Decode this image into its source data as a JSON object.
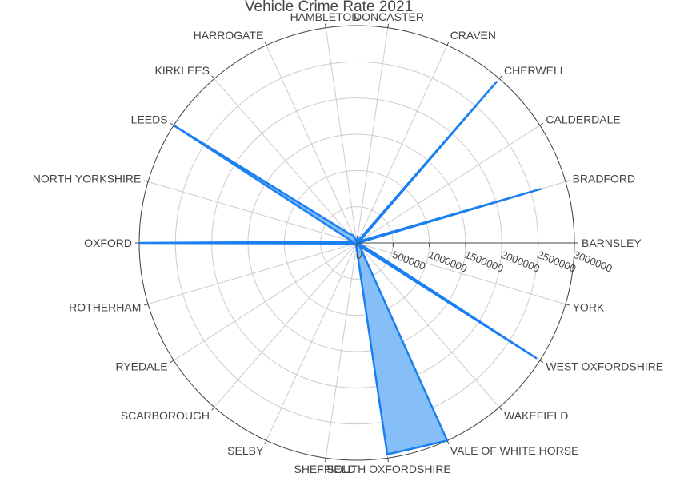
{
  "chart_data": {
    "type": "polar-area",
    "title": "Vehicle Crime Rate 2021",
    "categories": [
      "BARNSLEY",
      "BRADFORD",
      "CALDERDALE",
      "CHERWELL",
      "CRAVEN",
      "DONCASTER",
      "HAMBLETON",
      "HARROGATE",
      "KIRKLEES",
      "LEEDS",
      "NORTH YORKSHIRE",
      "OXFORD",
      "ROTHERHAM",
      "RYEDALE",
      "SCARBOROUGH",
      "SELBY",
      "SHEFFIELD",
      "SOUTH OXFORDSHIRE",
      "VALE OF WHITE HORSE",
      "WAKEFIELD",
      "WEST OXFORDSHIRE",
      "YORK"
    ],
    "values": [
      15000,
      2650000,
      40000,
      2950000,
      20000,
      100000,
      10000,
      110000,
      180000,
      3000000,
      60000,
      3000000,
      30000,
      20000,
      20000,
      10000,
      50000,
      2950000,
      3000000,
      60000,
      2950000,
      50000
    ],
    "radial_range": [
      0,
      3000000
    ],
    "radial_ticks": [
      "0",
      "500000",
      "1000000",
      "1500000",
      "2000000",
      "2500000",
      "3000000"
    ],
    "radial_tick_values": [
      0,
      500000,
      1000000,
      1500000,
      2000000,
      2500000,
      3000000
    ],
    "fill_color": "#7fbbf8",
    "line_color": "#1a7ff0",
    "grid": true
  }
}
